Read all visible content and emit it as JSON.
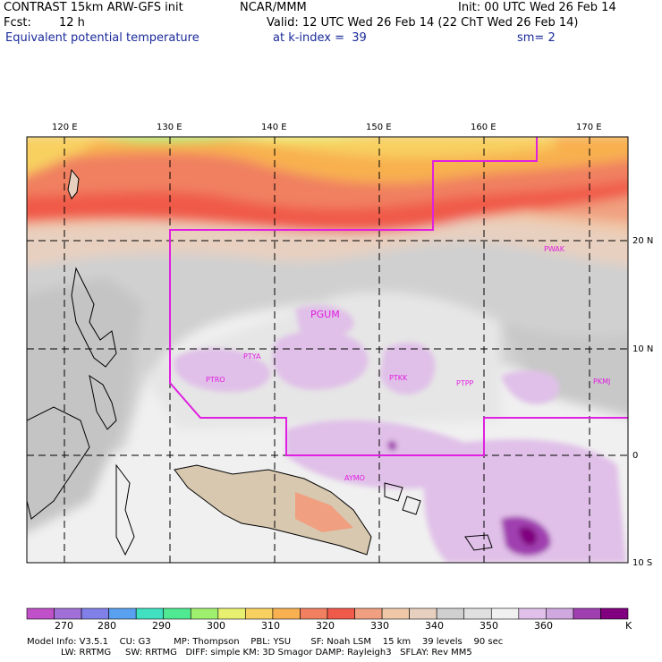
{
  "header": {
    "line1_left": "CONTRAST 15km ARW-GFS init",
    "line1_mid": "NCAR/MMM",
    "line1_right": "Init: 00 UTC Wed 26 Feb 14",
    "fcst_label": "Fcst:",
    "fcst_value": "12 h",
    "valid": "Valid: 12 UTC Wed 26 Feb 14 (22 ChT Wed 26 Feb 14)",
    "field": "Equivalent potential temperature",
    "level": "at k-index =  39",
    "smoothing": "sm= 2"
  },
  "map": {
    "lon_labels": [
      "120 E",
      "130 E",
      "140 E",
      "150 E",
      "160 E",
      "170 E"
    ],
    "lat_labels": [
      "20 N",
      "10 N",
      "0",
      "10 S"
    ],
    "stations": [
      "PWAK",
      "PGUM",
      "PTYA",
      "PTRO",
      "PTKK",
      "PTPP",
      "PKMJ",
      "AYMO"
    ]
  },
  "colorbar": {
    "labels": [
      "270",
      "280",
      "290",
      "300",
      "310",
      "320",
      "330",
      "340",
      "350",
      "360"
    ],
    "unit": "K",
    "colors": [
      "#c050c8",
      "#a070d8",
      "#8080e8",
      "#5aa0f0",
      "#40e0c0",
      "#50e890",
      "#a0f070",
      "#e8f070",
      "#f8d060",
      "#f8b050",
      "#f08060",
      "#f05a4a",
      "#f0a080",
      "#f0c8a8",
      "#e8d0c0",
      "#d0d0d0",
      "#e0e0e0",
      "#f0f0f0",
      "#e0c0e8",
      "#d0a8e0",
      "#a040b0",
      "#800080"
    ]
  },
  "model_info": {
    "line1": "Model Info: V3.5.1    CU: G3        MP: Thompson    PBL: YSU       SF: Noah LSM    15 km    39 levels    90 sec",
    "line2": "LW: RRTMG     SW: RRTMG   DIFF: simple KM: 3D Smagor DAMP: Rayleigh3   SFLAY: Rev MM5"
  }
}
